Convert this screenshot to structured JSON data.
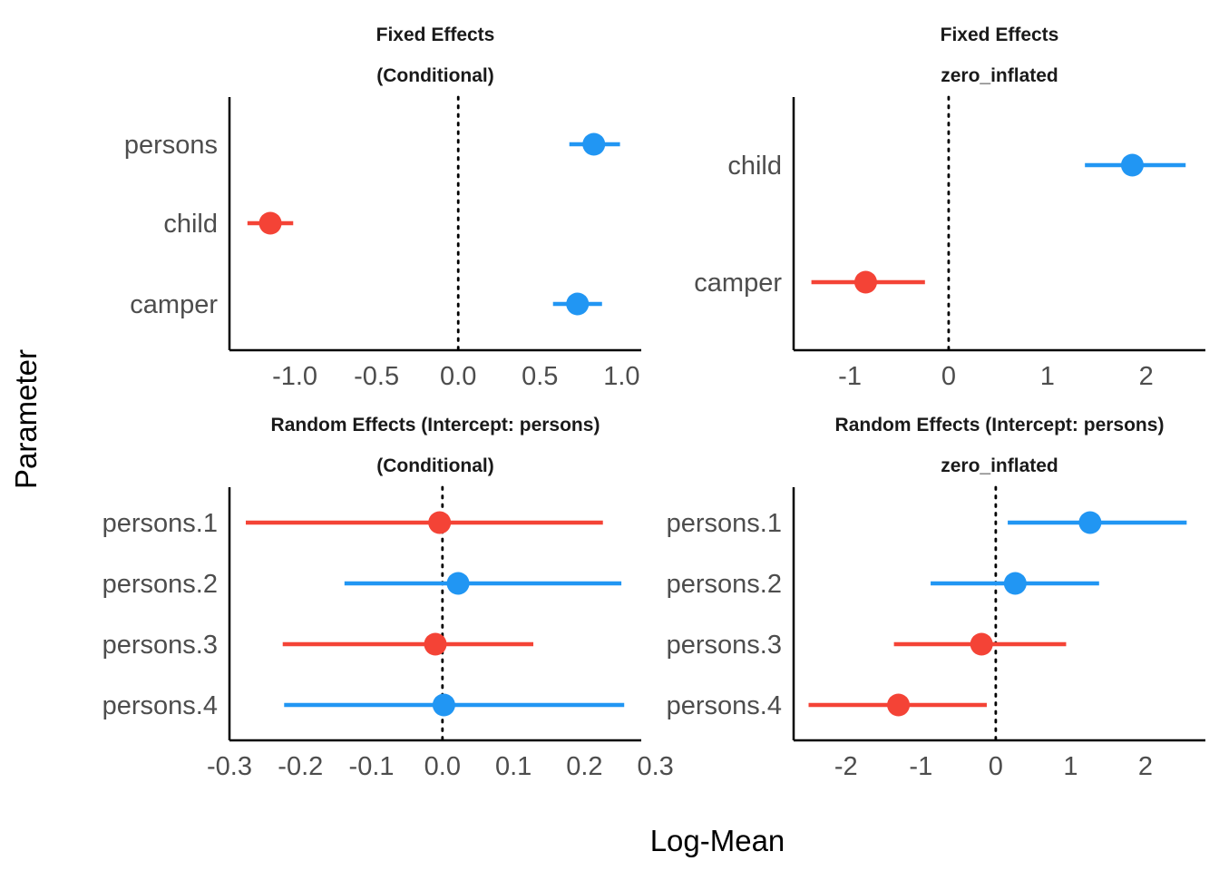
{
  "figure": {
    "ylabel": "Parameter",
    "xlabel": "Log-Mean"
  },
  "colors": {
    "positive": "#2196F3",
    "negative": "#F44336",
    "axis": "#000000",
    "text": "#4d4d4d"
  },
  "chart_data": [
    {
      "type": "forest",
      "title_line1": "Fixed Effects",
      "title_line2": "(Conditional)",
      "xlim": [
        -1.4,
        1.12
      ],
      "xticks": [
        -1.0,
        -0.5,
        0.0,
        0.5,
        1.0
      ],
      "xtick_labels": [
        "-1.0",
        "-0.5",
        "0.0",
        "0.5",
        "1.0"
      ],
      "reference_line": 0,
      "rows": [
        {
          "label": "persons",
          "estimate": 0.83,
          "low": 0.68,
          "high": 0.99
        },
        {
          "label": "child",
          "estimate": -1.15,
          "low": -1.29,
          "high": -1.01
        },
        {
          "label": "camper",
          "estimate": 0.73,
          "low": 0.58,
          "high": 0.88
        }
      ]
    },
    {
      "type": "forest",
      "title_line1": "Fixed Effects",
      "title_line2": "zero_inflated",
      "xlim": [
        -1.57,
        2.6
      ],
      "xticks": [
        -1,
        0,
        1,
        2
      ],
      "xtick_labels": [
        "-1",
        "0",
        "1",
        "2"
      ],
      "reference_line": 0,
      "rows": [
        {
          "label": "child",
          "estimate": 1.86,
          "low": 1.38,
          "high": 2.4
        },
        {
          "label": "camper",
          "estimate": -0.84,
          "low": -1.39,
          "high": -0.24
        }
      ]
    },
    {
      "type": "forest",
      "title_line1": "Random Effects (Intercept: persons)",
      "title_line2": "(Conditional)",
      "xlim": [
        -0.3,
        0.28
      ],
      "xticks": [
        -0.3,
        -0.2,
        -0.1,
        0.0,
        0.1,
        0.2,
        0.3
      ],
      "xtick_labels": [
        "-0.3",
        "-0.2",
        "-0.1",
        "0.0",
        "0.1",
        "0.2",
        "0.3"
      ],
      "reference_line": 0,
      "rows": [
        {
          "label": "persons.1",
          "estimate": -0.004,
          "low": -0.277,
          "high": 0.226
        },
        {
          "label": "persons.2",
          "estimate": 0.022,
          "low": -0.138,
          "high": 0.252
        },
        {
          "label": "persons.3",
          "estimate": -0.01,
          "low": -0.225,
          "high": 0.128
        },
        {
          "label": "persons.4",
          "estimate": 0.002,
          "low": -0.223,
          "high": 0.256
        }
      ]
    },
    {
      "type": "forest",
      "title_line1": "Random Effects (Intercept: persons)",
      "title_line2": "zero_inflated",
      "xlim": [
        -2.7,
        2.8
      ],
      "xticks": [
        -2,
        -1,
        0,
        1,
        2
      ],
      "xtick_labels": [
        "-2",
        "-1",
        "0",
        "1",
        "2"
      ],
      "reference_line": 0,
      "rows": [
        {
          "label": "persons.1",
          "estimate": 1.26,
          "low": 0.16,
          "high": 2.55
        },
        {
          "label": "persons.2",
          "estimate": 0.26,
          "low": -0.87,
          "high": 1.38
        },
        {
          "label": "persons.3",
          "estimate": -0.19,
          "low": -1.36,
          "high": 0.94
        },
        {
          "label": "persons.4",
          "estimate": -1.3,
          "low": -2.5,
          "high": -0.12
        }
      ]
    }
  ]
}
